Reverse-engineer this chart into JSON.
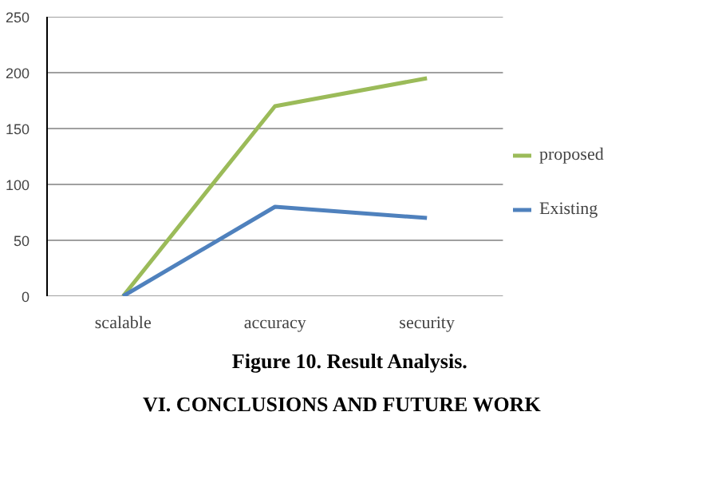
{
  "chart_data": {
    "type": "line",
    "categories": [
      "scalable",
      "accuracy",
      "security"
    ],
    "series": [
      {
        "name": "proposed",
        "color": "#9bbb59",
        "values": [
          0,
          170,
          195
        ]
      },
      {
        "name": "Existing",
        "color": "#4f81bd",
        "values": [
          0,
          80,
          70
        ]
      }
    ],
    "ylim": [
      0,
      250
    ],
    "yticks": [
      0,
      50,
      100,
      150,
      200,
      250
    ],
    "grid": "y",
    "legend": "right",
    "marker": "none",
    "annotations": [
      "Figure 10. Result Analysis.",
      "VI.    CONCLUSIONS AND FUTURE WORK"
    ]
  }
}
